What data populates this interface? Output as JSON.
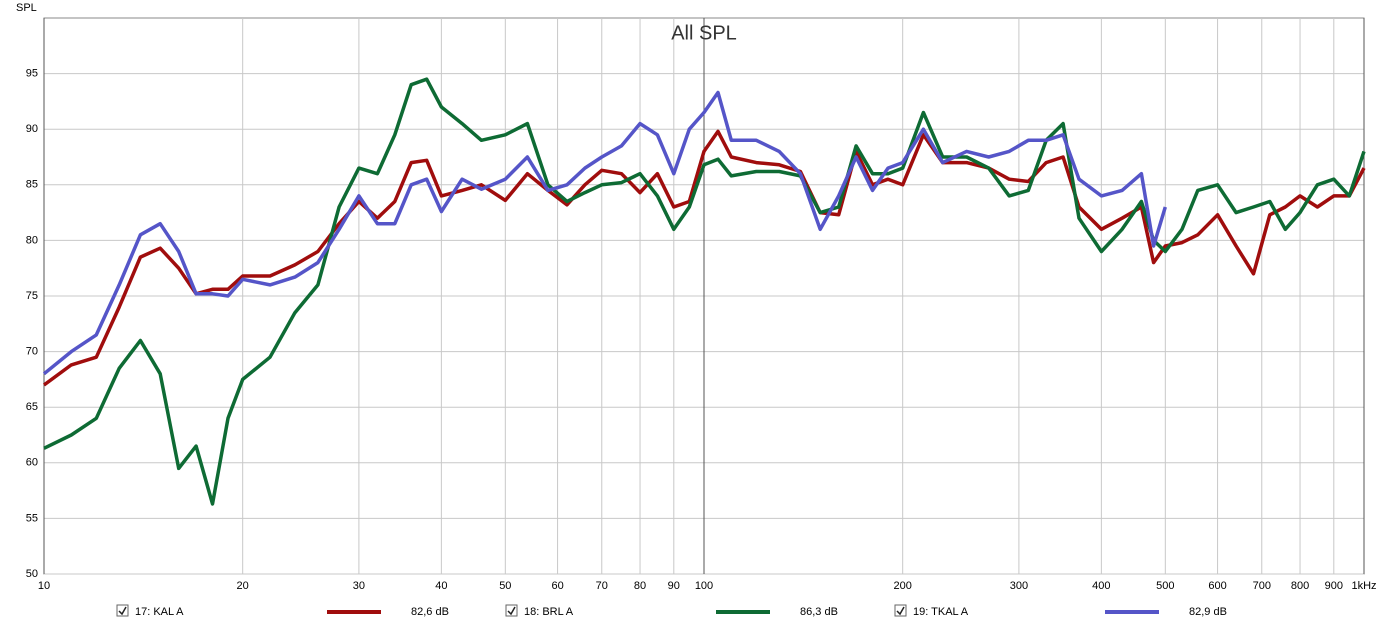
{
  "chart_data": {
    "type": "line",
    "title": "All SPL",
    "y_label": "SPL",
    "xscale": "log",
    "grid": true,
    "x": [
      10,
      11,
      12,
      13,
      14,
      15,
      16,
      17,
      18,
      19,
      20,
      22,
      24,
      26,
      28,
      30,
      32,
      34,
      36,
      38,
      40,
      43,
      46,
      50,
      54,
      58,
      62,
      66,
      70,
      75,
      80,
      85,
      90,
      95,
      100,
      105,
      110,
      120,
      130,
      140,
      150,
      160,
      170,
      180,
      190,
      200,
      215,
      230,
      250,
      270,
      290,
      310,
      330,
      350,
      370,
      400,
      430,
      460,
      480,
      500,
      530,
      560,
      600,
      640,
      680,
      720,
      760,
      800,
      850,
      900,
      950,
      1000
    ],
    "xlim": [
      10,
      1000
    ],
    "xticks": [
      10,
      20,
      30,
      40,
      50,
      60,
      70,
      80,
      90,
      100,
      200,
      300,
      400,
      500,
      600,
      700,
      800,
      900,
      {
        "value": 1000,
        "label": "1kHz"
      }
    ],
    "ylim": [
      50,
      100
    ],
    "yticks": [
      50,
      55,
      60,
      65,
      70,
      75,
      80,
      85,
      90,
      95
    ],
    "series": [
      {
        "name": "17: KAL A",
        "color": "#a00d0d",
        "level": "82,6 dB",
        "values": [
          67,
          68.8,
          69.5,
          74,
          78.5,
          79.3,
          77.5,
          75.2,
          75.6,
          75.6,
          76.8,
          76.8,
          77.8,
          79,
          81.5,
          83.5,
          82,
          83.5,
          87,
          87.2,
          84,
          84.5,
          85,
          83.6,
          86,
          84.5,
          83.2,
          85,
          86.3,
          86,
          84.3,
          86,
          83,
          83.5,
          88,
          89.8,
          87.5,
          87,
          86.8,
          86.2,
          82.5,
          82.3,
          88,
          85,
          85.5,
          85,
          89.5,
          87,
          87,
          86.5,
          85.5,
          85.3,
          87,
          87.5,
          83,
          81,
          82,
          83,
          78,
          79.5,
          79.8,
          80.5,
          82.3,
          79.5,
          77,
          82.3,
          83,
          84,
          83,
          84,
          84,
          86.5
        ]
      },
      {
        "name": "18: BRL A",
        "color": "#0e6b34",
        "level": "86,3 dB",
        "values": [
          61.3,
          62.5,
          64,
          68.5,
          71,
          68,
          59.5,
          61.5,
          56.3,
          64,
          67.5,
          69.5,
          73.5,
          76,
          83,
          86.5,
          86,
          89.5,
          94,
          94.5,
          92,
          90.5,
          89,
          89.5,
          90.5,
          85,
          83.5,
          84.3,
          85,
          85.2,
          86,
          84,
          81,
          83,
          86.8,
          87.3,
          85.8,
          86.2,
          86.2,
          85.8,
          82.5,
          83,
          88.5,
          86,
          86,
          86.5,
          91.5,
          87.5,
          87.5,
          86.5,
          84,
          84.5,
          89,
          90.5,
          82,
          79,
          81,
          83.5,
          80,
          79,
          81,
          84.5,
          85,
          82.5,
          83,
          83.5,
          81,
          82.5,
          85,
          85.5,
          84,
          88
        ]
      },
      {
        "name": "19: TKAL A",
        "color": "#5555c8",
        "level": "82,9 dB",
        "values": [
          68,
          70,
          71.5,
          76,
          80.5,
          81.5,
          79,
          75.2,
          75.2,
          75,
          76.5,
          76,
          76.7,
          78,
          81,
          84,
          81.5,
          81.5,
          85,
          85.5,
          82.6,
          85.5,
          84.6,
          85.5,
          87.5,
          84.5,
          85,
          86.5,
          87.5,
          88.5,
          90.5,
          89.5,
          86,
          90,
          91.5,
          93.3,
          89,
          89,
          88,
          86,
          81,
          84,
          87.5,
          84.5,
          86.5,
          87,
          90,
          87,
          88,
          87.5,
          88,
          89,
          89,
          89.5,
          85.5,
          84,
          84.5,
          86,
          79.5,
          83,
          null,
          null,
          null,
          null,
          null,
          null,
          null,
          null,
          null,
          null,
          null,
          null
        ]
      }
    ]
  }
}
